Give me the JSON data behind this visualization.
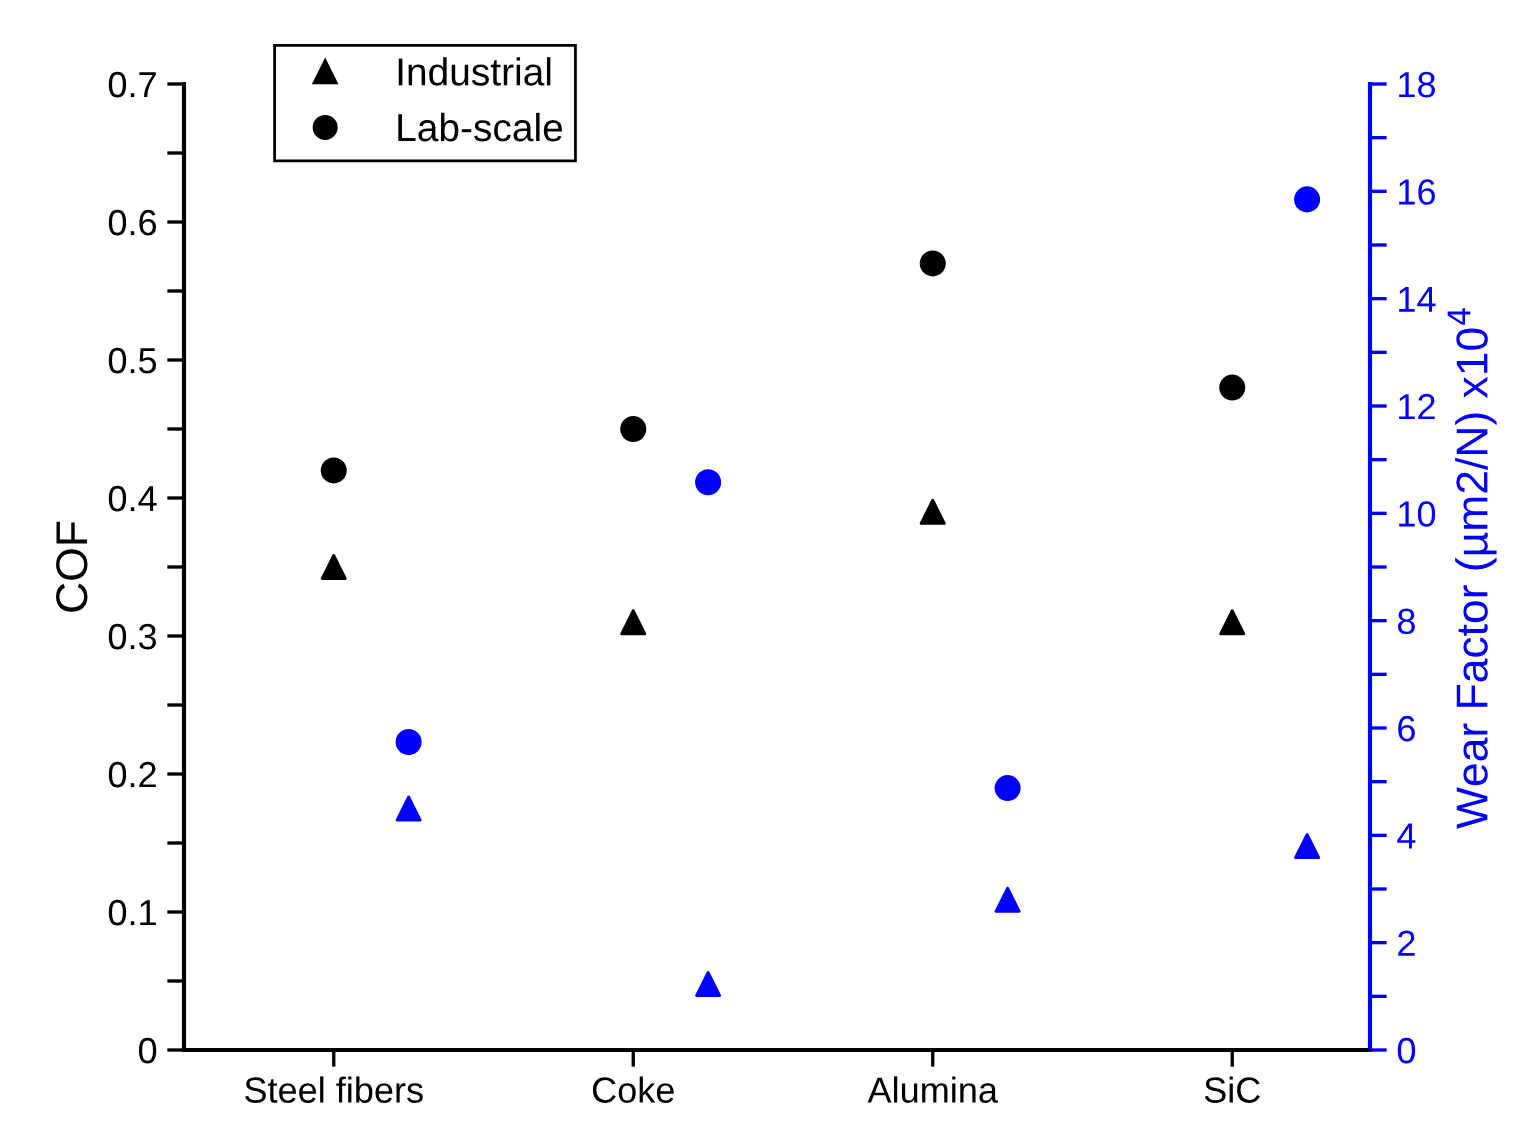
{
  "chart_data": {
    "type": "scatter",
    "ylabel": "COF",
    "y2label": "Wear Factor (µm2/N) x10$^{4}$",
    "categories": [
      "Steel fibers",
      "Coke",
      "Alumina",
      "SiC"
    ],
    "ylim": [
      0,
      0.7
    ],
    "yticks": [
      0,
      {
        "value": 0.05,
        "label": null
      },
      0.1,
      {
        "value": 0.15,
        "label": null
      },
      0.2,
      {
        "value": 0.25,
        "label": null
      },
      0.3,
      {
        "value": 0.35,
        "label": null
      },
      0.4,
      {
        "value": 0.45,
        "label": null
      },
      0.5,
      {
        "value": 0.55,
        "label": null
      },
      0.6,
      {
        "value": 0.65,
        "label": null
      },
      0.7
    ],
    "y2lim": [
      0,
      18
    ],
    "y2ticks": [
      0,
      {
        "value": 1,
        "label": null
      },
      2,
      {
        "value": 3,
        "label": null
      },
      4,
      {
        "value": 5,
        "label": null
      },
      6,
      {
        "value": 7,
        "label": null
      },
      8,
      {
        "value": 9,
        "label": null
      },
      10,
      {
        "value": 11,
        "label": null
      },
      12,
      {
        "value": 13,
        "label": null
      },
      14,
      {
        "value": 15,
        "label": null
      },
      16,
      {
        "value": 17,
        "label": null
      },
      18
    ],
    "series": [
      {
        "name": "Industrial",
        "color": "#000000",
        "marker": "triangle",
        "values": [
          0.35,
          0.31,
          0.39,
          0.31
        ]
      },
      {
        "name": "Lab-scale",
        "color": "#000000",
        "marker": "circle",
        "values": [
          0.42,
          0.45,
          0.57,
          0.48
        ]
      },
      {
        "color": "#0000ff",
        "marker": "triangle",
        "axis": "y2",
        "values": [
          4.5,
          1.23,
          2.8,
          3.8
        ]
      },
      {
        "color": "#0000ff",
        "marker": "circle",
        "axis": "y2",
        "values": [
          5.74,
          10.58,
          4.88,
          15.85
        ]
      }
    ],
    "legend": "top left",
    "grid": false
  }
}
